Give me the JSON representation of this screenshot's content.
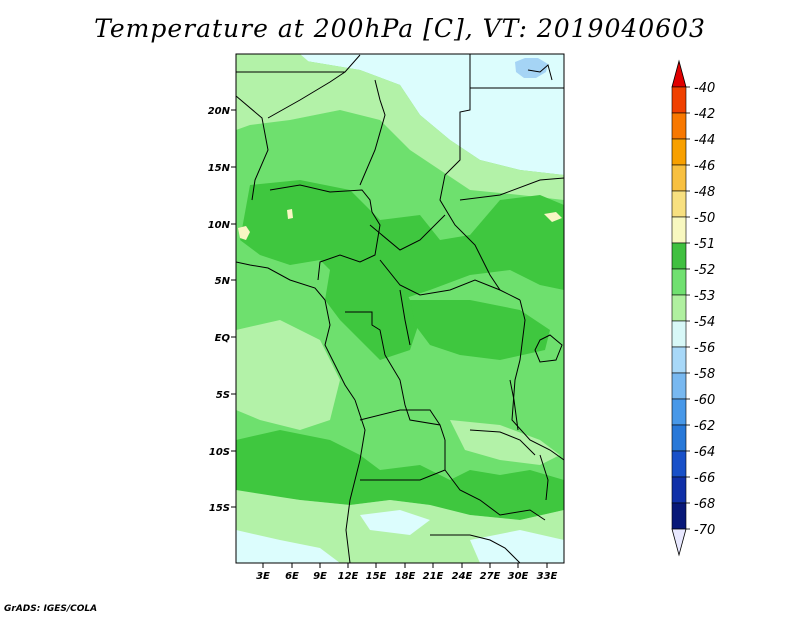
{
  "title": "Temperature at 200hPa [C], VT: 2019040603",
  "credit": "GrADS: IGES/COLA",
  "lat_ticks": [
    "20N",
    "15N",
    "10N",
    "5N",
    "EQ",
    "5S",
    "10S",
    "15S"
  ],
  "lon_ticks": [
    "3E",
    "6E",
    "9E",
    "12E",
    "15E",
    "18E",
    "21E",
    "24E",
    "27E",
    "30E",
    "33E"
  ],
  "colorbar": {
    "labels": [
      "-40",
      "-42",
      "-44",
      "-46",
      "-48",
      "-50",
      "-51",
      "-52",
      "-53",
      "-54",
      "-56",
      "-58",
      "-60",
      "-62",
      "-64",
      "-66",
      "-68",
      "-70"
    ],
    "colors": [
      "#e00000",
      "#f04000",
      "#f87800",
      "#f8a000",
      "#f8c040",
      "#f8e080",
      "#f8f8c0",
      "#40c040",
      "#70e070",
      "#b0f0a0",
      "#d8f8f8",
      "#a8d8f8",
      "#78b8f0",
      "#4898e8",
      "#2878d8",
      "#1850c8",
      "#1030a8",
      "#081878",
      "#e8e8ff"
    ]
  },
  "colors": {
    "deep_green": "#3fc73f",
    "mid_green": "#6ee06e",
    "light_green": "#b3f2a8",
    "pale_cyan": "#dcfdfd",
    "light_blue": "#a5d4f5",
    "pale_yellow": "#f9f6c4"
  }
}
